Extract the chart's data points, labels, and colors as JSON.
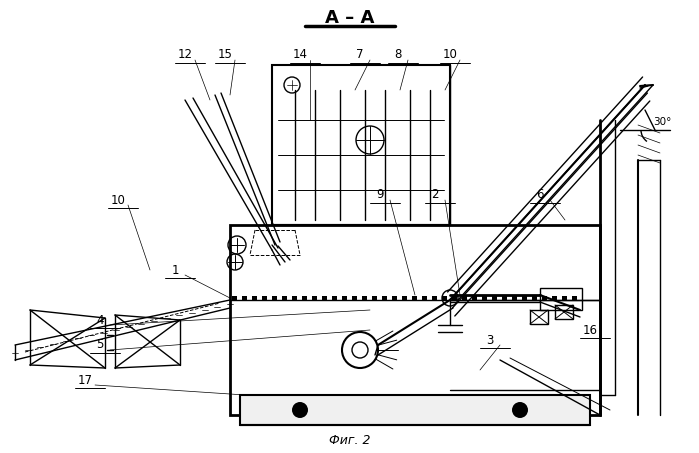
{
  "title": "А – А",
  "caption": "Фиг. 2",
  "bg_color": "#ffffff",
  "line_color": "#000000",
  "figsize": [
    6.99,
    4.53
  ],
  "dpi": 100
}
